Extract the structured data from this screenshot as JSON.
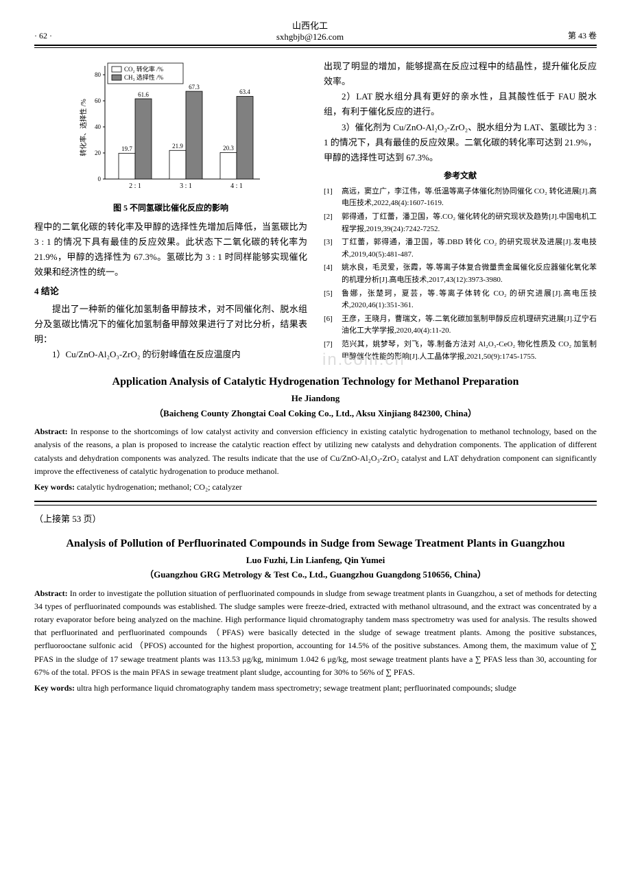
{
  "header": {
    "page_number": "· 62 ·",
    "journal_name": "山西化工",
    "email": "sxhgbjb@126.com",
    "volume": "第 43 卷"
  },
  "chart": {
    "type": "bar",
    "legend": [
      "CO₂ 转化率 /%",
      "CH₃ 选择性 /%"
    ],
    "categories": [
      "2 : 1",
      "3 : 1",
      "4 : 1"
    ],
    "series": [
      {
        "name": "CO2转化率",
        "values": [
          19.7,
          21.9,
          20.3
        ],
        "fill": "#ffffff",
        "stroke": "#000000"
      },
      {
        "name": "CH3选择性",
        "values": [
          61.6,
          67.3,
          63.4
        ],
        "fill": "#808080",
        "stroke": "#000000"
      }
    ],
    "ylabel": "转化率、选择性 /%",
    "ylim": [
      0,
      80
    ],
    "ytick_step": 20,
    "bar_labels": [
      "19.7",
      "61.6",
      "21.9",
      "67.3",
      "20.3",
      "63.4"
    ],
    "background_color": "#ffffff",
    "axis_color": "#000000",
    "label_fontsize": 10,
    "bar_width": 0.35,
    "caption": "图 5  不同氢碳比催化反应的影响"
  },
  "left_col": {
    "para1": "程中的二氧化碳的转化率及甲醇的选择性先增加后降低，当氢碳比为 3 : 1 的情况下具有最佳的反应效果。此状态下二氧化碳的转化率为 21.9%，甲醇的选择性为 67.3%。氢碳比为 3 : 1 时同样能够实现催化效果和经济性的统一。",
    "sec4_heading": "4  结论",
    "para2": "提出了一种新的催化加氢制备甲醇技术，对不同催化剂、脱水组分及氢碳比情况下的催化加氢制备甲醇效果进行了对比分析，结果表明：",
    "para3": "1）Cu/ZnO-Al₂O₃-ZrO₂ 的衍射峰值在反应温度内"
  },
  "right_col": {
    "para1": "出现了明显的增加，能够提高在反应过程中的结晶性，提升催化反应效率。",
    "para2": "2）LAT 脱水组分具有更好的亲水性，且其酸性低于 FAU 脱水组，有利于催化反应的进行。",
    "para3": "3）催化剂为 Cu/ZnO-Al₂O₃-ZrO₂、脱水组分为 LAT、氢碳比为 3 : 1 的情况下，具有最佳的反应效果。二氧化碳的转化率可达到 21.9%，甲醇的选择性可达到 67.3%。",
    "ref_heading": "参考文献",
    "refs": [
      {
        "n": "[1]",
        "t": "高远，窦立广，李江伟，等.低温等离子体催化剂协同催化 CO₂ 转化进展[J].高电压技术,2022,48(4):1607-1619."
      },
      {
        "n": "[2]",
        "t": "郭得通，丁红蕾，潘卫国，等.CO₂ 催化转化的研究现状及趋势[J].中国电机工程学报,2019,39(24):7242-7252."
      },
      {
        "n": "[3]",
        "t": "丁红蕾，郭得通，潘卫国，等.DBD 转化 CO₂ 的研究现状及进展[J].发电技术,2019,40(5):481-487."
      },
      {
        "n": "[4]",
        "t": "姚水良，毛灵爱，张霞，等.等离子体复合微量贵金属催化反应器催化氧化苯的机理分析[J].高电压技术,2017,43(12):3973-3980."
      },
      {
        "n": "[5]",
        "t": "鲁娜，张楚珂，夏芸，等.等离子体转化 CO₂ 的研究进展[J].高电压技术,2020,46(1):351-361."
      },
      {
        "n": "[6]",
        "t": "王彦，王晓月，曹瑞文，等.二氧化碳加氢制甲醇反应机理研究进展[J].辽宁石油化工大学学报,2020,40(4):11-20."
      },
      {
        "n": "[7]",
        "t": "范兴其，姚梦琴，刘飞，等.制备方法对 Al₂O₃-CeO₂ 物化性质及 CO₂ 加氢制甲醇催化性能的影响[J].人工晶体学报,2021,50(9):1745-1755."
      }
    ]
  },
  "english1": {
    "title": "Application Analysis of Catalytic Hydrogenation Technology for Methanol Preparation",
    "author": "He Jiandong",
    "affil": "（Baicheng County Zhongtai Coal Coking Co., Ltd., Aksu Xinjiang 842300, China）",
    "abstract_label": "Abstract:",
    "abstract": " In response to the shortcomings of low catalyst activity and conversion efficiency in existing catalytic hydrogenation to methanol technology, based on the analysis of the reasons, a plan is proposed to increase the catalytic reaction effect by utilizing new catalysts and dehydration components. The application of different catalysts and dehydration components was analyzed. The results indicate that the use of Cu/ZnO-Al₂O₃-ZrO₂ catalyst and LAT dehydration component can significantly improve the effectiveness of catalytic hydrogenation to produce methanol.",
    "keywords_label": "Key words:",
    "keywords": " catalytic hydrogenation; methanol; CO₂; catalyzer"
  },
  "continuation": "（上接第 53 页）",
  "english2": {
    "title": "Analysis of Pollution of Perfluorinated Compounds in Sudge from Sewage Treatment Plants in Guangzhou",
    "author": "Luo Fuzhi, Lin Lianfeng, Qin Yumei",
    "affil": "（Guangzhou GRG Metrology & Test Co., Ltd., Guangzhou Guangdong 510656, China）",
    "abstract_label": "Abstract:",
    "abstract": " In order to investigate the pollution situation of perfluorinated compounds in sludge from sewage treatment plants in Guangzhou, a set of methods for detecting 34 types of perfluorinated compounds was established. The sludge samples were freeze-dried, extracted with methanol ultrasound, and the extract was concentrated by a rotary evaporator before being analyzed on the machine. High performance liquid chromatography tandem mass spectrometry was used for analysis. The results showed that perfluorinated and perfluorinated compounds （PFAS) were basically detected in the sludge of sewage treatment plants. Among the positive substances, perfluorooctane sulfonic acid （PFOS) accounted for the highest proportion, accounting for 14.5% of the positive substances. Among them, the maximum value of ∑ PFAS in the sludge of 17 sewage treatment plants was 113.53 μg/kg, minimum 1.042 6 μg/kg, most sewage treatment plants have a ∑ PFAS less than 30, accounting for 67% of the total. PFOS is the main PFAS in sewage treatment plant sludge, accounting for 30% to 56% of ∑ PFAS.",
    "keywords_label": "Key words:",
    "keywords": " ultra high performance liquid chromatography tandem mass spectrometry; sewage treatment plant; perfluorinated compounds; sludge"
  },
  "watermark": "in.com.cn"
}
